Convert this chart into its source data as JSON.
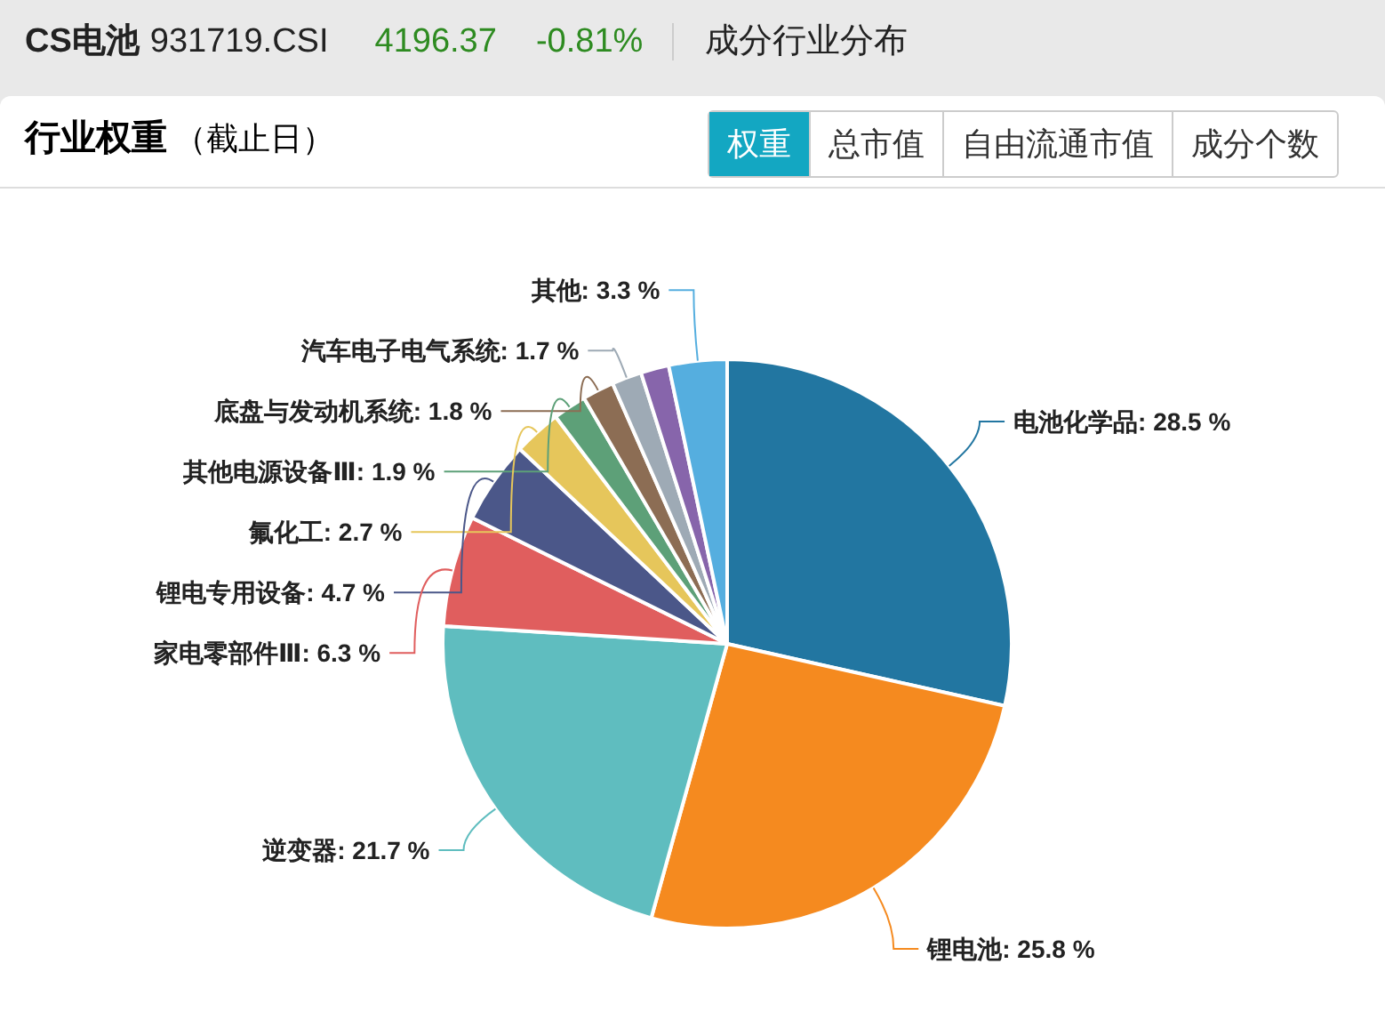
{
  "chart_data": {
    "type": "pie",
    "title": "行业权重",
    "subtitle": "（截止日）",
    "annotations": [
      "CS电池",
      "931719.CSI",
      "4196.37",
      "-0.81%",
      "成分行业分布",
      "权重",
      "总市值",
      "自由流通市值",
      "成分个数"
    ],
    "categories": [
      "电池化学品",
      "锂电池",
      "逆变器",
      "家电零部件Ⅲ",
      "锂电专用设备",
      "氟化工",
      "其他电源设备Ⅲ",
      "底盘与发动机系统",
      "汽车电子电气系统",
      null,
      "其他"
    ],
    "values": [
      28.5,
      25.8,
      21.7,
      6.3,
      4.7,
      2.7,
      1.9,
      1.8,
      1.7,
      1.6,
      3.3
    ],
    "colors": [
      "#2276a1",
      "#f58a1f",
      "#5fbdbf",
      "#e05e5e",
      "#4b5789",
      "#e6c65b",
      "#5da078",
      "#8c6d54",
      "#9eaab5",
      "#8765ab",
      "#55aedf"
    ],
    "value_labels": [
      ": 28.5 %",
      ": 25.8 %",
      ": 21.7 %",
      ": 6.3 %",
      ": 4.7 %",
      ": 2.7 %",
      ": 1.9 %",
      ": 1.8 %",
      ": 1.7 %",
      null,
      ": 3.3 %"
    ]
  }
}
